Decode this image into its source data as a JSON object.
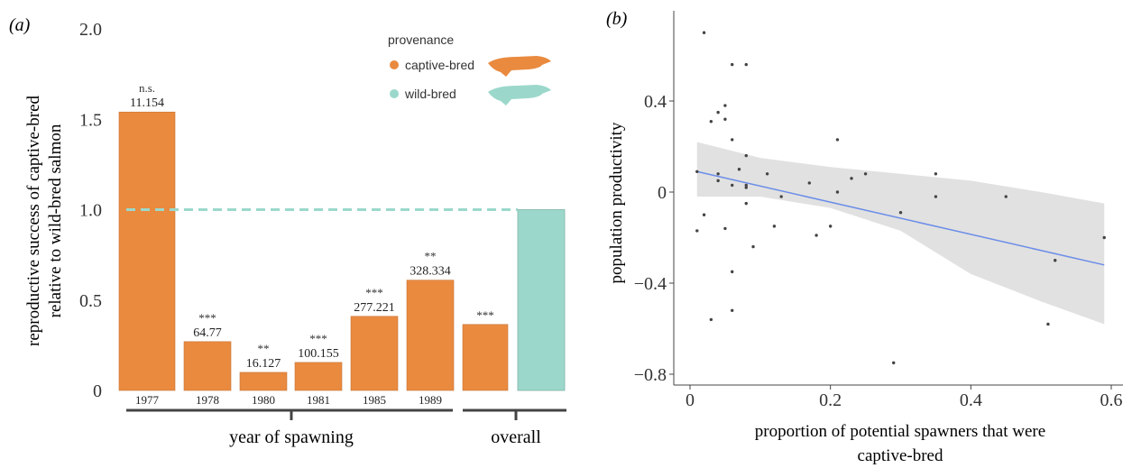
{
  "colors": {
    "captive": "#e98a3f",
    "wild": "#9bd8cb",
    "trend": "#6b8de8",
    "band": "#e1e1e1",
    "point": "#444444",
    "axis": "#444444"
  },
  "panel_a": {
    "label": "(a)",
    "ylabel_line1": "reproductive success of captive-bred",
    "ylabel_line2": "relative to wild-bred salmon",
    "group_label_years": "year of spawning",
    "group_label_overall": "overall",
    "legend": {
      "title": "provenance",
      "captive_label": "captive-bred",
      "wild_label": "wild-bred",
      "captive_icon": "salmon-icon",
      "wild_icon": "salmon-icon"
    }
  },
  "panel_b": {
    "label": "(b)",
    "xlabel_line1": "proportion of potential spawners that were",
    "xlabel_line2": "captive-bred",
    "ylabel": "population productivity"
  },
  "chart_data": [
    {
      "type": "bar",
      "categories": [
        "1977",
        "1978",
        "1980",
        "1981",
        "1985",
        "1989",
        ""
      ],
      "series": [
        {
          "name": "captive-bred",
          "values": [
            1.54,
            0.27,
            0.1,
            0.155,
            0.41,
            0.61,
            0.365
          ]
        },
        {
          "name": "wild-bred",
          "values": [
            null,
            null,
            null,
            null,
            null,
            null,
            1.0
          ]
        }
      ],
      "annotations": [
        {
          "sig": "n.s.",
          "n": "11.154"
        },
        {
          "sig": "***",
          "n": "64.77"
        },
        {
          "sig": "**",
          "n": "16.127"
        },
        {
          "sig": "***",
          "n": "100.155"
        },
        {
          "sig": "***",
          "n": "277.221"
        },
        {
          "sig": "**",
          "n": "328.334"
        },
        {
          "sig": "***",
          "n": ""
        }
      ],
      "reference_line": 1.0,
      "yticks": [
        "0",
        "0.5",
        "1.0",
        "1.5",
        "2.0"
      ],
      "ylim": [
        0,
        2.0
      ],
      "xlabel": "year of spawning",
      "ylabel": "reproductive success of captive-bred relative to wild-bred salmon",
      "legend_title": "provenance",
      "legend_position": "top-right"
    },
    {
      "type": "scatter",
      "xlabel": "proportion of potential spawners that were captive-bred",
      "ylabel": "population productivity",
      "xlim": [
        -0.02,
        0.6
      ],
      "ylim": [
        -0.82,
        0.74
      ],
      "xticks": [
        "0",
        "0.2",
        "0.4",
        "0.6"
      ],
      "yticks": [
        "−0.8",
        "−0.4",
        "0",
        "0.4"
      ],
      "grid": false,
      "points": [
        [
          0.02,
          0.7
        ],
        [
          0.06,
          0.56
        ],
        [
          0.08,
          0.56
        ],
        [
          0.03,
          0.31
        ],
        [
          0.04,
          0.35
        ],
        [
          0.05,
          0.38
        ],
        [
          0.05,
          0.32
        ],
        [
          0.06,
          0.23
        ],
        [
          0.08,
          0.16
        ],
        [
          0.07,
          0.1
        ],
        [
          0.04,
          0.08
        ],
        [
          0.01,
          0.09
        ],
        [
          0.04,
          0.05
        ],
        [
          0.06,
          0.03
        ],
        [
          0.08,
          0.03
        ],
        [
          0.08,
          0.02
        ],
        [
          0.11,
          0.08
        ],
        [
          0.21,
          0.23
        ],
        [
          0.25,
          0.08
        ],
        [
          0.23,
          0.06
        ],
        [
          0.17,
          0.04
        ],
        [
          0.21,
          0.0
        ],
        [
          0.13,
          -0.02
        ],
        [
          0.08,
          -0.05
        ],
        [
          0.02,
          -0.1
        ],
        [
          0.05,
          -0.16
        ],
        [
          0.12,
          -0.15
        ],
        [
          0.01,
          -0.17
        ],
        [
          0.09,
          -0.24
        ],
        [
          0.06,
          -0.35
        ],
        [
          0.06,
          -0.52
        ],
        [
          0.03,
          -0.56
        ],
        [
          0.18,
          -0.19
        ],
        [
          0.2,
          -0.15
        ],
        [
          0.3,
          -0.09
        ],
        [
          0.35,
          0.08
        ],
        [
          0.35,
          -0.02
        ],
        [
          0.45,
          -0.02
        ],
        [
          0.52,
          -0.3
        ],
        [
          0.51,
          -0.58
        ],
        [
          0.59,
          -0.2
        ],
        [
          0.29,
          -0.75
        ]
      ],
      "trend": {
        "x": [
          0.01,
          0.59
        ],
        "y": [
          0.09,
          -0.32
        ]
      },
      "confidence_band": {
        "x": [
          0.01,
          0.1,
          0.2,
          0.3,
          0.4,
          0.5,
          0.59
        ],
        "upper": [
          0.22,
          0.15,
          0.11,
          0.08,
          0.05,
          0.0,
          -0.05
        ],
        "lower": [
          -0.02,
          -0.02,
          -0.07,
          -0.17,
          -0.36,
          -0.48,
          -0.58
        ]
      }
    }
  ]
}
